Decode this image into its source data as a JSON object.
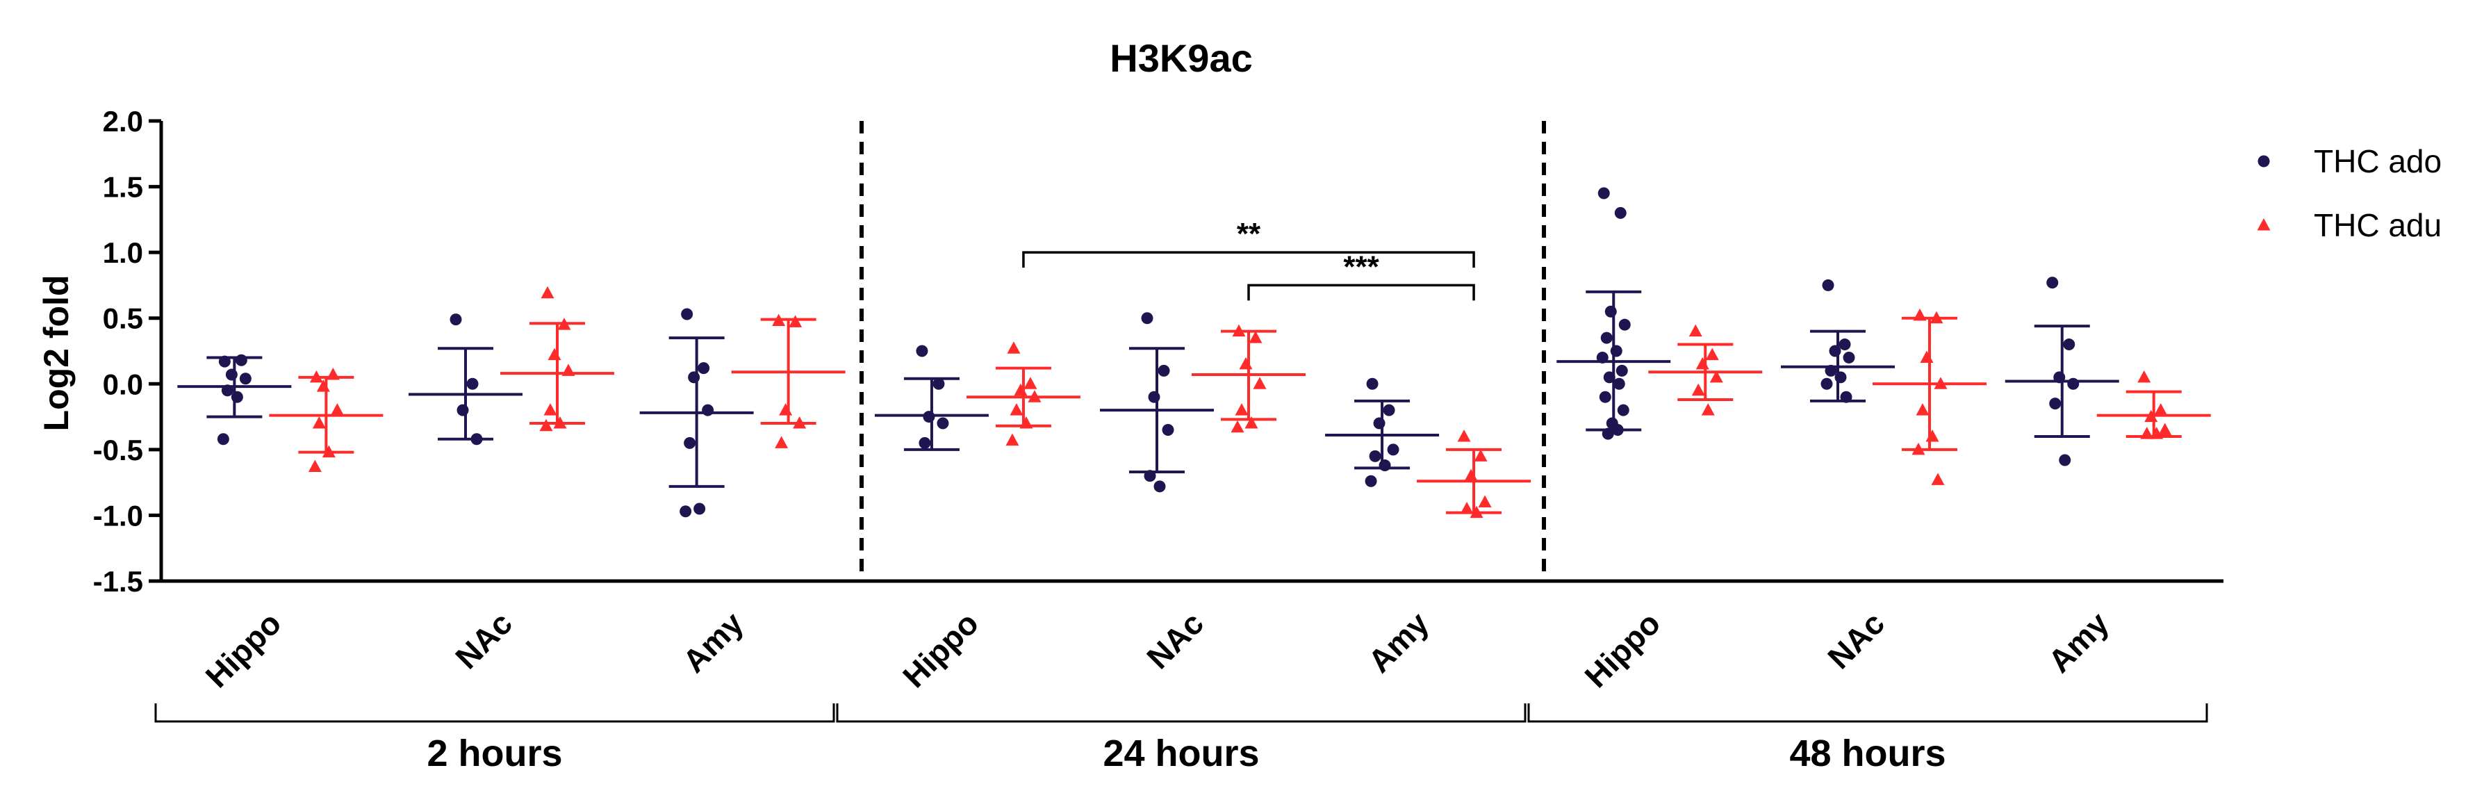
{
  "chart_data": {
    "type": "scatter",
    "title": "H3K9ac",
    "ylabel": "Log2 fold",
    "xlabel": "",
    "ylim": [
      -1.5,
      2.0
    ],
    "yticks": [
      "2.0",
      "1.5",
      "1.0",
      "0.5",
      "0.0",
      "-0.5",
      "-1.0",
      "-1.5"
    ],
    "legend_position": "top-right",
    "series": [
      {
        "name": "THC ado",
        "color": "#1f1550",
        "marker": "circle"
      },
      {
        "name": "THC adu",
        "color": "#ff2a2a",
        "marker": "triangle"
      }
    ],
    "time_groups": [
      {
        "label": "2 hours",
        "regions": [
          {
            "label": "Hippo",
            "ado": {
              "points": [
                0.17,
                0.18,
                0.07,
                0.04,
                -0.05,
                -0.1,
                -0.42
              ],
              "mean": -0.02,
              "sd_low": -0.25,
              "sd_high": 0.2
            },
            "adu": {
              "points": [
                0.05,
                0.07,
                -0.02,
                -0.2,
                -0.3,
                -0.52,
                -0.63
              ],
              "mean": -0.24,
              "sd_low": -0.52,
              "sd_high": 0.05
            }
          },
          {
            "label": "NAc",
            "ado": {
              "points": [
                0.49,
                0.0,
                -0.2,
                -0.42
              ],
              "mean": -0.08,
              "sd_low": -0.42,
              "sd_high": 0.27
            },
            "adu": {
              "points": [
                0.69,
                0.45,
                0.22,
                0.1,
                -0.2,
                -0.3,
                -0.32
              ],
              "mean": 0.08,
              "sd_low": -0.3,
              "sd_high": 0.46
            }
          },
          {
            "label": "Amy",
            "ado": {
              "points": [
                0.53,
                0.12,
                0.05,
                -0.2,
                -0.45,
                -0.95,
                -0.97
              ],
              "mean": -0.22,
              "sd_low": -0.78,
              "sd_high": 0.35
            },
            "adu": {
              "points": [
                0.48,
                0.47,
                -0.2,
                -0.3,
                -0.45
              ],
              "mean": 0.09,
              "sd_low": -0.3,
              "sd_high": 0.49
            }
          }
        ]
      },
      {
        "label": "24 hours",
        "regions": [
          {
            "label": "Hippo",
            "ado": {
              "points": [
                0.25,
                0.0,
                -0.25,
                -0.3,
                -0.45
              ],
              "mean": -0.24,
              "sd_low": -0.5,
              "sd_high": 0.04
            },
            "adu": {
              "points": [
                0.27,
                0.0,
                -0.05,
                -0.1,
                -0.2,
                -0.3,
                -0.43
              ],
              "mean": -0.1,
              "sd_low": -0.32,
              "sd_high": 0.12
            }
          },
          {
            "label": "NAc",
            "ado": {
              "points": [
                0.5,
                0.1,
                -0.1,
                -0.35,
                -0.7,
                -0.78
              ],
              "mean": -0.2,
              "sd_low": -0.67,
              "sd_high": 0.27
            },
            "adu": {
              "points": [
                0.4,
                0.35,
                0.15,
                0.0,
                -0.2,
                -0.3,
                -0.33
              ],
              "mean": 0.07,
              "sd_low": -0.27,
              "sd_high": 0.4
            }
          },
          {
            "label": "Amy",
            "ado": {
              "points": [
                0.0,
                -0.2,
                -0.3,
                -0.5,
                -0.55,
                -0.62,
                -0.74
              ],
              "mean": -0.39,
              "sd_low": -0.64,
              "sd_high": -0.13
            },
            "adu": {
              "points": [
                -0.4,
                -0.55,
                -0.7,
                -0.9,
                -0.95,
                -0.98
              ],
              "mean": -0.74,
              "sd_low": -0.98,
              "sd_high": -0.5
            }
          }
        ]
      },
      {
        "label": "48 hours",
        "regions": [
          {
            "label": "Hippo",
            "ado": {
              "points": [
                1.45,
                1.3,
                0.55,
                0.45,
                0.35,
                0.25,
                0.2,
                0.1,
                0.05,
                0.0,
                -0.1,
                -0.2,
                -0.3,
                -0.35,
                -0.38
              ],
              "mean": 0.17,
              "sd_low": -0.35,
              "sd_high": 0.7
            },
            "adu": {
              "points": [
                0.4,
                0.22,
                0.15,
                0.05,
                -0.05,
                -0.2
              ],
              "mean": 0.09,
              "sd_low": -0.12,
              "sd_high": 0.3
            },
            "_": ""
          },
          {
            "label": "NAc",
            "ado": {
              "points": [
                0.75,
                0.3,
                0.25,
                0.2,
                0.1,
                0.05,
                0.0,
                -0.1
              ],
              "mean": 0.13,
              "sd_low": -0.13,
              "sd_high": 0.4
            },
            "adu": {
              "points": [
                0.52,
                0.5,
                0.2,
                0.0,
                -0.2,
                -0.4,
                -0.5,
                -0.73
              ],
              "mean": 0.0,
              "sd_low": -0.5,
              "sd_high": 0.5
            }
          },
          {
            "label": "Amy",
            "ado": {
              "points": [
                0.77,
                0.3,
                0.05,
                0.0,
                -0.15,
                -0.58
              ],
              "mean": 0.02,
              "sd_low": -0.4,
              "sd_high": 0.44
            },
            "adu": {
              "points": [
                0.05,
                -0.2,
                -0.25,
                -0.35,
                -0.38,
                -0.38
              ],
              "mean": -0.24,
              "sd_low": -0.4,
              "sd_high": -0.06
            }
          }
        ]
      }
    ],
    "significance": [
      {
        "label": "**",
        "from": "24 hours Hippo THC adu",
        "to": "24 hours Amy THC adu",
        "y": 1.0
      },
      {
        "label": "***",
        "from": "24 hours NAc THC adu",
        "to": "24 hours Amy THC adu",
        "y": 0.75
      }
    ]
  }
}
